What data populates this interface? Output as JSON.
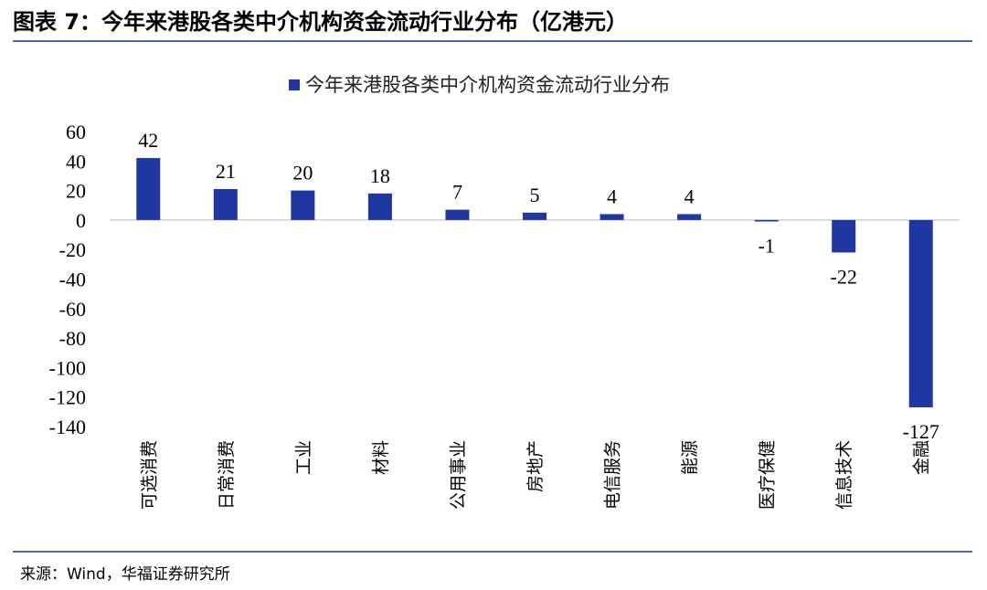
{
  "figure": {
    "title": "图表 7：今年来港股各类中介机构资金流动行业分布（亿港元）",
    "source": "来源：Wind，华福证券研究所"
  },
  "colors": {
    "bar": "#1f37a3",
    "rule": "#4a67b3",
    "axis": "#d0d0d0"
  },
  "chart_data": {
    "type": "bar",
    "title": "",
    "xlabel": "",
    "ylabel": "",
    "ylim": [
      -140,
      60
    ],
    "yticks": [
      60,
      40,
      20,
      0,
      -20,
      -40,
      -60,
      -80,
      -100,
      -120,
      -140
    ],
    "grid": false,
    "legend_position": "top-center",
    "categories": [
      "可选消费",
      "日常消费",
      "工业",
      "材料",
      "公用事业",
      "房地产",
      "电信服务",
      "能源",
      "医疗保健",
      "信息技术",
      "金融"
    ],
    "series": [
      {
        "name": "今年来港股各类中介机构资金流动行业分布",
        "values": [
          42,
          21,
          20,
          18,
          7,
          5,
          4,
          4,
          -1,
          -22,
          -127
        ]
      }
    ]
  }
}
